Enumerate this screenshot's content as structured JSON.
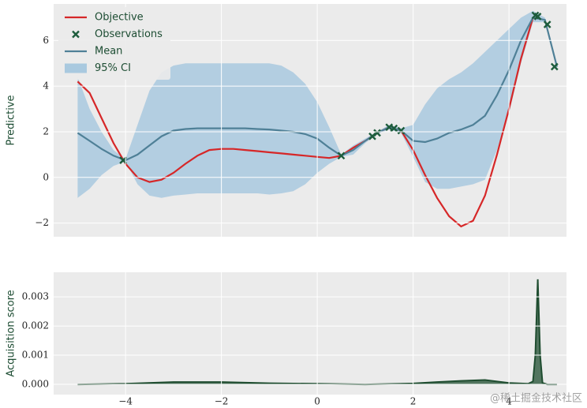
{
  "chart_data": [
    {
      "type": "line",
      "ylabel": "Predictive",
      "grid": true,
      "legend": "upper left",
      "x": [
        -5,
        -4.75,
        -4.5,
        -4.25,
        -4,
        -3.75,
        -3.5,
        -3.25,
        -3,
        -2.75,
        -2.5,
        -2.25,
        -2,
        -1.75,
        -1.5,
        -1.25,
        -1,
        -0.75,
        -0.5,
        -0.25,
        0,
        0.25,
        0.5,
        0.75,
        1,
        1.25,
        1.5,
        1.75,
        2,
        2.25,
        2.5,
        2.75,
        3,
        3.25,
        3.5,
        3.75,
        4,
        4.25,
        4.5,
        4.75,
        5
      ],
      "series": [
        {
          "name": "Objective",
          "color": "#d62728",
          "values": [
            4.2,
            3.7,
            2.6,
            1.5,
            0.6,
            0.0,
            -0.2,
            -0.1,
            0.2,
            0.6,
            0.95,
            1.2,
            1.25,
            1.25,
            1.2,
            1.15,
            1.1,
            1.05,
            1.0,
            0.95,
            0.9,
            0.85,
            0.95,
            1.3,
            1.6,
            1.95,
            2.2,
            2.05,
            1.2,
            0.1,
            -0.9,
            -1.7,
            -2.15,
            -1.9,
            -0.8,
            1.0,
            3.0,
            5.2,
            7.0,
            null,
            null
          ]
        },
        {
          "name": "Mean",
          "color": "#4f8097",
          "values": [
            1.95,
            1.6,
            1.25,
            0.95,
            0.75,
            1.0,
            1.4,
            1.8,
            2.05,
            2.12,
            2.15,
            2.15,
            2.15,
            2.15,
            2.15,
            2.12,
            2.1,
            2.05,
            2.0,
            1.9,
            1.7,
            1.3,
            0.95,
            1.2,
            1.6,
            1.95,
            2.2,
            2.05,
            1.6,
            1.55,
            1.7,
            1.95,
            2.1,
            2.3,
            2.7,
            3.6,
            4.7,
            6.0,
            7.0,
            6.9,
            4.85
          ]
        }
      ],
      "band": {
        "name": "95% CI",
        "color": "#a9c9df",
        "upper": [
          4.4,
          3.0,
          2.0,
          1.2,
          0.8,
          2.3,
          3.8,
          4.6,
          4.9,
          5.0,
          5.0,
          5.0,
          5.0,
          5.0,
          5.0,
          5.0,
          5.0,
          4.9,
          4.6,
          4.1,
          3.3,
          2.2,
          1.0,
          1.4,
          1.7,
          2.0,
          2.3,
          2.15,
          2.3,
          3.2,
          3.9,
          4.3,
          4.6,
          5.0,
          5.5,
          6.0,
          6.5,
          7.0,
          7.3,
          7.0,
          4.9
        ],
        "lower": [
          -0.9,
          -0.5,
          0.1,
          0.5,
          0.7,
          -0.3,
          -0.8,
          -0.9,
          -0.8,
          -0.75,
          -0.7,
          -0.7,
          -0.7,
          -0.7,
          -0.7,
          -0.7,
          -0.75,
          -0.7,
          -0.6,
          -0.3,
          0.2,
          0.6,
          0.9,
          1.0,
          1.5,
          1.9,
          2.1,
          1.95,
          0.9,
          -0.2,
          -0.5,
          -0.5,
          -0.4,
          -0.3,
          -0.1,
          1.2,
          2.8,
          5.0,
          6.8,
          6.8,
          4.8
        ]
      },
      "scatter": {
        "name": "Observations",
        "color": "#1d5c3c",
        "x": [
          -4.05,
          0.5,
          1.15,
          1.25,
          1.5,
          1.6,
          1.75,
          4.55,
          4.6,
          4.8,
          4.95
        ],
        "values": [
          0.75,
          0.95,
          1.8,
          1.95,
          2.2,
          2.15,
          2.05,
          7.1,
          7.05,
          6.7,
          4.85
        ]
      },
      "xlim": [
        -5.5,
        5.2
      ],
      "ylim": [
        -2.6,
        7.6
      ],
      "xticks": [
        -4,
        -2,
        0,
        2,
        4
      ],
      "yticks": [
        {
          "value": -2,
          "label": "−2"
        },
        0,
        2,
        4,
        6
      ]
    },
    {
      "type": "area",
      "ylabel": "Acquisition score",
      "grid": true,
      "color": "#1f4d30",
      "x": [
        -5,
        -4,
        -3,
        -2,
        -1,
        0,
        1,
        2,
        2.5,
        3,
        3.5,
        4,
        4.4,
        4.5,
        4.55,
        4.6,
        4.65,
        4.7,
        4.8,
        5
      ],
      "values": [
        0,
        2e-05,
        8e-05,
        8e-05,
        4e-05,
        2e-05,
        0,
        3e-05,
        8e-05,
        0.00012,
        0.00015,
        5e-05,
        2e-05,
        0.0001,
        0.001,
        0.0036,
        0.001,
        5e-05,
        0,
        0
      ],
      "xlim": [
        -5.5,
        5.2
      ],
      "ylim": [
        -0.00035,
        0.00384
      ],
      "xticks": [
        {
          "value": -4,
          "label": "−4"
        },
        {
          "value": -2,
          "label": "−2"
        },
        0,
        2,
        4
      ],
      "yticks": [
        {
          "value": 0,
          "label": "0.000"
        },
        {
          "value": 0.001,
          "label": "0.001"
        },
        {
          "value": 0.002,
          "label": "0.002"
        },
        {
          "value": 0.003,
          "label": "0.003"
        }
      ],
      "watermark": "@稀土掘金技术社区"
    }
  ]
}
